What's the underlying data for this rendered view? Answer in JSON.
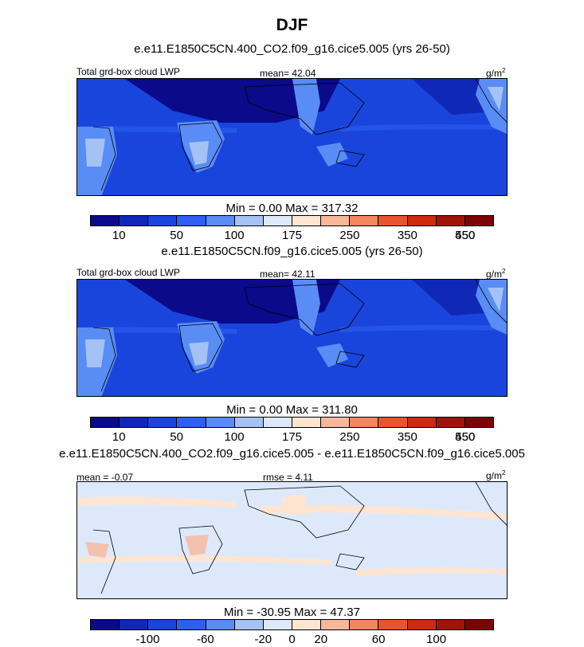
{
  "title": "DJF",
  "colors": {
    "palette": [
      "#0a0a8a",
      "#1028b8",
      "#1a45dc",
      "#2d5ff0",
      "#5a8cf5",
      "#a5c2f5",
      "#dde9fb",
      "#fde5d2",
      "#f9b79a",
      "#f2865f",
      "#e8542d",
      "#cc2b10",
      "#a01408",
      "#7a0505"
    ],
    "land_outline": "#000000"
  },
  "chart_data": [
    {
      "type": "heatmap",
      "name": "panel-1",
      "subtitle": "e.e11.E1850C5CN.400_CO2.f09_g16.cice5.005 (yrs 26-50)",
      "left_label": "Total grd-box cloud LWP",
      "center_label": "mean=  42.04",
      "units": "g/m",
      "units_exp": "2",
      "min_max": "Min =   0.00 Max = 317.32",
      "colorbar_ticks": [
        "10",
        "50",
        "100",
        "175",
        "250",
        "350",
        "450",
        "550"
      ],
      "mean": 42.04,
      "min": 0.0,
      "max": 317.32
    },
    {
      "type": "heatmap",
      "name": "panel-2",
      "subtitle": "e.e11.E1850C5CN.f09_g16.cice5.005 (yrs 26-50)",
      "left_label": "Total grd-box cloud LWP",
      "center_label": "mean=  42.11",
      "units": "g/m",
      "units_exp": "2",
      "min_max": "Min =   0.00 Max = 311.80",
      "colorbar_ticks": [
        "10",
        "50",
        "100",
        "175",
        "250",
        "350",
        "450",
        "550"
      ],
      "mean": 42.11,
      "min": 0.0,
      "max": 311.8
    },
    {
      "type": "heatmap",
      "name": "panel-3",
      "subtitle": "e.e11.E1850C5CN.400_CO2.f09_g16.cice5.005 - e.e11.E1850C5CN.f09_g16.cice5.005",
      "left_label": "mean =  -0.07",
      "center_label": "rmse =   4.11",
      "units": "g/m",
      "units_exp": "2",
      "min_max": "Min = -30.95 Max =  47.37",
      "colorbar_ticks": [
        "-100",
        "-60",
        "-20",
        "0",
        "20",
        "60",
        "100"
      ],
      "mean": -0.07,
      "rmse": 4.11,
      "min": -30.95,
      "max": 47.37
    }
  ]
}
